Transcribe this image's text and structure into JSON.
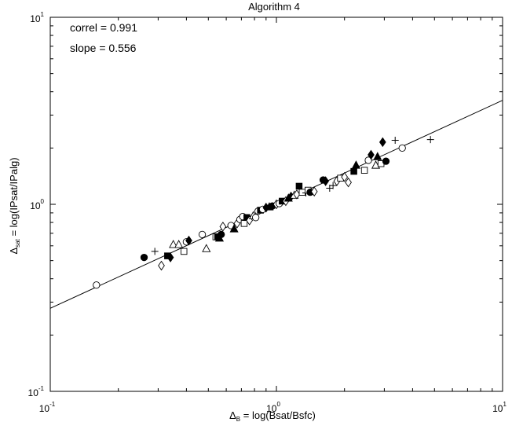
{
  "chart_data": {
    "type": "scatter",
    "title": "Algorithm 4",
    "xlabel": {
      "symbol": "Δ",
      "sub": "B",
      "expr": " = log(Bsat/Bsfc)"
    },
    "ylabel": {
      "symbol": "Δ",
      "sub": "sat",
      "expr": " = log(IPsat/IPalg)"
    },
    "xscale": "log",
    "yscale": "log",
    "xlim": [
      0.1,
      10
    ],
    "ylim": [
      0.1,
      10
    ],
    "xticks": [
      {
        "base": "10",
        "exp": "-1"
      },
      {
        "base": "10",
        "exp": "0"
      },
      {
        "base": "10",
        "exp": "1"
      }
    ],
    "yticks": [
      {
        "base": "10",
        "exp": "-1"
      },
      {
        "base": "10",
        "exp": "0"
      },
      {
        "base": "10",
        "exp": "1"
      }
    ],
    "annotations": [
      "correl = 0.991",
      "slope = 0.556"
    ],
    "grid": false,
    "fit_line": {
      "slope": 0.556,
      "intercept_at_1": 1.0
    },
    "points": [
      {
        "x": 0.16,
        "y": 0.37,
        "m": "circle-open"
      },
      {
        "x": 0.26,
        "y": 0.52,
        "m": "circle-filled"
      },
      {
        "x": 0.29,
        "y": 0.56,
        "m": "plus"
      },
      {
        "x": 0.31,
        "y": 0.47,
        "m": "diamond-open"
      },
      {
        "x": 0.33,
        "y": 0.53,
        "m": "square-filled"
      },
      {
        "x": 0.34,
        "y": 0.52,
        "m": "diamond-filled"
      },
      {
        "x": 0.35,
        "y": 0.61,
        "m": "triangle-open"
      },
      {
        "x": 0.37,
        "y": 0.61,
        "m": "triangle-open"
      },
      {
        "x": 0.39,
        "y": 0.56,
        "m": "square-open"
      },
      {
        "x": 0.4,
        "y": 0.63,
        "m": "circle-open"
      },
      {
        "x": 0.41,
        "y": 0.64,
        "m": "diamond-filled"
      },
      {
        "x": 0.47,
        "y": 0.69,
        "m": "circle-open"
      },
      {
        "x": 0.49,
        "y": 0.58,
        "m": "triangle-open"
      },
      {
        "x": 0.54,
        "y": 0.67,
        "m": "square-open"
      },
      {
        "x": 0.55,
        "y": 0.67,
        "m": "square-filled"
      },
      {
        "x": 0.56,
        "y": 0.66,
        "m": "triangle-filled"
      },
      {
        "x": 0.57,
        "y": 0.69,
        "m": "circle-filled"
      },
      {
        "x": 0.58,
        "y": 0.76,
        "m": "diamond-open"
      },
      {
        "x": 0.63,
        "y": 0.77,
        "m": "circle-open"
      },
      {
        "x": 0.65,
        "y": 0.74,
        "m": "triangle-filled"
      },
      {
        "x": 0.67,
        "y": 0.79,
        "m": "diamond-open"
      },
      {
        "x": 0.69,
        "y": 0.83,
        "m": "circle-open"
      },
      {
        "x": 0.71,
        "y": 0.86,
        "m": "circle-open"
      },
      {
        "x": 0.72,
        "y": 0.79,
        "m": "square-open"
      },
      {
        "x": 0.74,
        "y": 0.85,
        "m": "square-filled"
      },
      {
        "x": 0.76,
        "y": 0.82,
        "m": "diamond-open"
      },
      {
        "x": 0.79,
        "y": 0.87,
        "m": "triangle-open"
      },
      {
        "x": 0.81,
        "y": 0.85,
        "m": "circle-open"
      },
      {
        "x": 0.83,
        "y": 0.92,
        "m": "circle-open"
      },
      {
        "x": 0.85,
        "y": 0.93,
        "m": "square-filled"
      },
      {
        "x": 0.87,
        "y": 0.94,
        "m": "circle-open"
      },
      {
        "x": 0.9,
        "y": 0.96,
        "m": "diamond-filled"
      },
      {
        "x": 0.93,
        "y": 0.97,
        "m": "triangle-filled"
      },
      {
        "x": 0.96,
        "y": 0.98,
        "m": "circle-filled"
      },
      {
        "x": 1.0,
        "y": 1.0,
        "m": "diamond-open"
      },
      {
        "x": 1.03,
        "y": 1.01,
        "m": "circle-open"
      },
      {
        "x": 1.06,
        "y": 1.04,
        "m": "square-filled"
      },
      {
        "x": 1.1,
        "y": 1.04,
        "m": "diamond-open"
      },
      {
        "x": 1.13,
        "y": 1.08,
        "m": "triangle-filled"
      },
      {
        "x": 1.16,
        "y": 1.1,
        "m": "diamond-filled"
      },
      {
        "x": 1.2,
        "y": 1.12,
        "m": "triangle-open"
      },
      {
        "x": 1.23,
        "y": 1.13,
        "m": "diamond-open"
      },
      {
        "x": 1.26,
        "y": 1.25,
        "m": "square-filled"
      },
      {
        "x": 1.3,
        "y": 1.16,
        "m": "square-open"
      },
      {
        "x": 1.35,
        "y": 1.15,
        "m": "plus"
      },
      {
        "x": 1.38,
        "y": 1.19,
        "m": "square-open"
      },
      {
        "x": 1.41,
        "y": 1.16,
        "m": "circle-filled"
      },
      {
        "x": 1.47,
        "y": 1.17,
        "m": "diamond-open"
      },
      {
        "x": 1.61,
        "y": 1.35,
        "m": "circle-filled"
      },
      {
        "x": 1.65,
        "y": 1.33,
        "m": "diamond-filled"
      },
      {
        "x": 1.72,
        "y": 1.22,
        "m": "plus"
      },
      {
        "x": 1.78,
        "y": 1.26,
        "m": "plus"
      },
      {
        "x": 1.85,
        "y": 1.33,
        "m": "diamond-open"
      },
      {
        "x": 1.92,
        "y": 1.38,
        "m": "square-open"
      },
      {
        "x": 2.0,
        "y": 1.4,
        "m": "diamond-open"
      },
      {
        "x": 2.08,
        "y": 1.31,
        "m": "diamond-open"
      },
      {
        "x": 2.2,
        "y": 1.5,
        "m": "square-filled"
      },
      {
        "x": 2.25,
        "y": 1.62,
        "m": "triangle-filled"
      },
      {
        "x": 2.45,
        "y": 1.52,
        "m": "square-open"
      },
      {
        "x": 2.55,
        "y": 1.72,
        "m": "circle-open"
      },
      {
        "x": 2.62,
        "y": 1.84,
        "m": "diamond-filled"
      },
      {
        "x": 2.75,
        "y": 1.62,
        "m": "triangle-open"
      },
      {
        "x": 2.8,
        "y": 1.8,
        "m": "triangle-filled"
      },
      {
        "x": 2.9,
        "y": 1.65,
        "m": "square-open"
      },
      {
        "x": 2.95,
        "y": 2.15,
        "m": "diamond-filled"
      },
      {
        "x": 3.05,
        "y": 1.7,
        "m": "circle-filled"
      },
      {
        "x": 3.35,
        "y": 2.2,
        "m": "plus"
      },
      {
        "x": 3.6,
        "y": 2.0,
        "m": "circle-open"
      },
      {
        "x": 4.8,
        "y": 2.22,
        "m": "plus"
      }
    ]
  }
}
